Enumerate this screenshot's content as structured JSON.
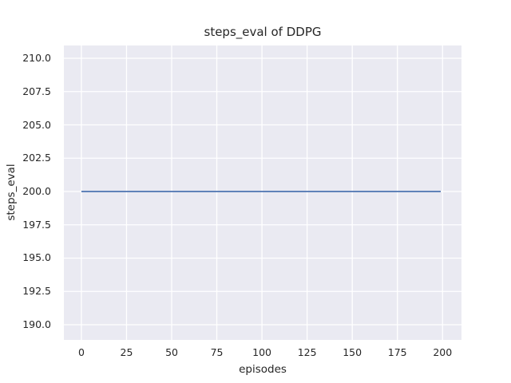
{
  "chart_data": {
    "type": "line",
    "title": "steps_eval of DDPG",
    "xlabel": "episodes",
    "ylabel": "steps_eval",
    "x_ticks": [
      0,
      25,
      50,
      75,
      100,
      125,
      150,
      175,
      200
    ],
    "x_tick_labels": [
      "0",
      "25",
      "50",
      "75",
      "100",
      "125",
      "150",
      "175",
      "200"
    ],
    "y_ticks": [
      190.0,
      192.5,
      195.0,
      197.5,
      200.0,
      202.5,
      205.0,
      207.5,
      210.0
    ],
    "y_tick_labels": [
      "190.0",
      "192.5",
      "195.0",
      "197.5",
      "200.0",
      "202.5",
      "205.0",
      "207.5",
      "210.0"
    ],
    "xlim": [
      -9.7,
      210.5
    ],
    "ylim": [
      188.86,
      210.96
    ],
    "grid": true,
    "legend": false,
    "series": [
      {
        "name": "steps_eval",
        "color": "#4c72b0",
        "x": [
          0,
          199
        ],
        "y": [
          200,
          200
        ]
      }
    ]
  },
  "style": {
    "figure_background": "#ffffff",
    "plot_background": "#eaeaf2",
    "grid_color": "#ffffff",
    "text_color": "#262626",
    "line_width": 1.8,
    "grid_line_width": 1.3
  }
}
